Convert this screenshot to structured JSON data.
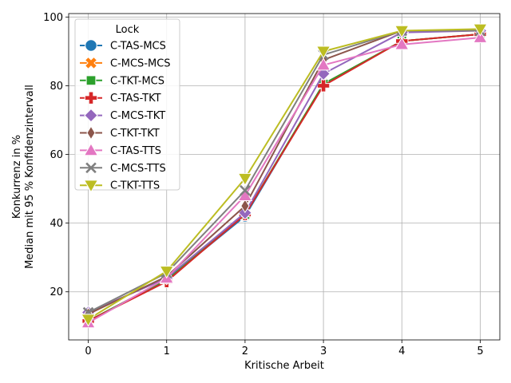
{
  "chart_data": {
    "type": "line",
    "xlabel": "Kritische Arbeit",
    "ylabel_lines": [
      "Konkurrenz in %",
      "Median mit 95 % Konfidenzintervall"
    ],
    "x": [
      0,
      1,
      2,
      3,
      4,
      5
    ],
    "xlim": [
      -0.25,
      5.25
    ],
    "ylim": [
      6,
      101
    ],
    "xticks": [
      "0",
      "1",
      "2",
      "3",
      "4",
      "5"
    ],
    "yticks": [
      20,
      40,
      60,
      80,
      100
    ],
    "grid": true,
    "legend": {
      "title": "Lock",
      "placement": "upper-left"
    },
    "series": [
      {
        "name": "C-TAS-MCS",
        "color": "#1f77b4",
        "marker": "circle",
        "values": [
          11.5,
          23.5,
          42.0,
          80.5,
          93.0,
          95.0
        ]
      },
      {
        "name": "C-MCS-MCS",
        "color": "#ff7f0e",
        "marker": "x-filled",
        "values": [
          11.5,
          23.5,
          42.5,
          80.5,
          93.0,
          95.0
        ]
      },
      {
        "name": "C-TKT-MCS",
        "color": "#2ca02c",
        "marker": "square",
        "values": [
          11.5,
          23.5,
          42.5,
          80.5,
          93.0,
          95.0
        ]
      },
      {
        "name": "C-TAS-TKT",
        "color": "#d62728",
        "marker": "plus-filled",
        "values": [
          11.5,
          23.0,
          42.5,
          80.0,
          93.0,
          95.0
        ]
      },
      {
        "name": "C-MCS-TKT",
        "color": "#9467bd",
        "marker": "diamond",
        "values": [
          14.0,
          24.0,
          43.0,
          83.5,
          95.5,
          96.0
        ]
      },
      {
        "name": "C-TKT-TKT",
        "color": "#8c564b",
        "marker": "thin-diamond",
        "values": [
          13.5,
          24.5,
          45.0,
          87.5,
          96.0,
          96.0
        ]
      },
      {
        "name": "C-TAS-TTS",
        "color": "#e377c2",
        "marker": "triangle-up",
        "values": [
          11.0,
          24.0,
          48.0,
          86.0,
          92.0,
          94.0
        ]
      },
      {
        "name": "C-MCS-TTS",
        "color": "#7f7f7f",
        "marker": "x",
        "values": [
          14.0,
          25.5,
          49.5,
          89.0,
          96.0,
          96.0
        ]
      },
      {
        "name": "C-TKT-TTS",
        "color": "#bcbd22",
        "marker": "triangle-down",
        "values": [
          12.0,
          26.0,
          53.0,
          90.0,
          96.0,
          96.5
        ]
      }
    ]
  }
}
